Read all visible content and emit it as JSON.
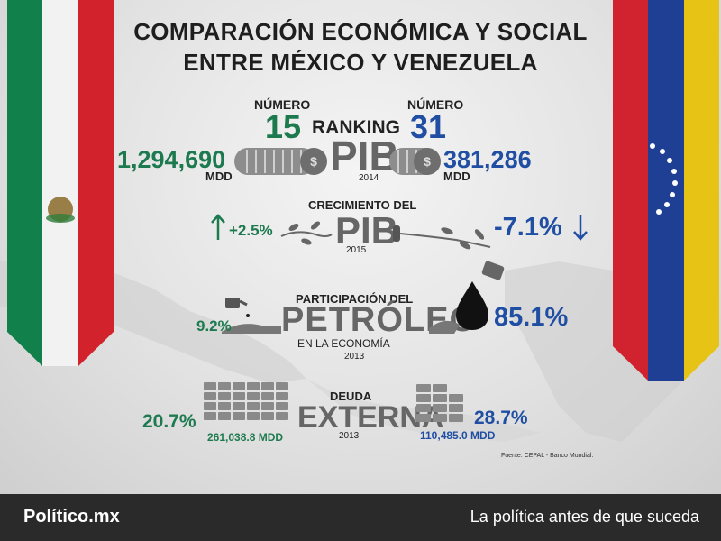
{
  "title": {
    "line1": "COMPARACIÓN ECONÓMICA Y SOCIAL",
    "line2": "ENTRE MÉXICO Y VENEZUELA"
  },
  "ranking": {
    "numero_left": "NÚMERO",
    "num_left": "15",
    "label": "RANKING",
    "numero_right": "NÚMERO",
    "num_right": "31"
  },
  "pib": {
    "mx_value": "1,294,690",
    "mx_unit": "MDD",
    "label": "PIB",
    "year": "2014",
    "ve_value": "381,286",
    "ve_unit": "MDD"
  },
  "crecimiento": {
    "title": "CRECIMIENTO DEL",
    "label": "PIB",
    "year": "2015",
    "mx": "+2.5%",
    "ve": "-7.1%"
  },
  "petroleo": {
    "title": "PARTICIPACIÓN DEL",
    "label": "PETRÓLEO",
    "sub": "EN LA ECONOMÍA",
    "year": "2013",
    "mx": "9.2%",
    "ve": "85.1%"
  },
  "deuda": {
    "title": "DEUDA",
    "label": "EXTERNA",
    "year": "2013",
    "mx_pct": "20.7%",
    "mx_value": "261,038.8 MDD",
    "ve_pct": "28.7%",
    "ve_value": "110,485.0 MDD"
  },
  "source": "Fuente: CEPAL - Banco Mundial.",
  "footer": {
    "brand": "Político.mx",
    "slogan": "La política antes de que suceda"
  },
  "colors": {
    "mexico_green": "#1d7a4f",
    "venezuela_blue": "#1f4ea3",
    "gray_text": "#666666",
    "footer_bg": "#2a2a2a"
  }
}
